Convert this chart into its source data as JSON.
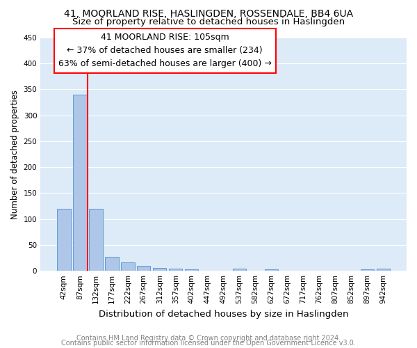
{
  "title1": "41, MOORLAND RISE, HASLINGDEN, ROSSENDALE, BB4 6UA",
  "title2": "Size of property relative to detached houses in Haslingden",
  "xlabel": "Distribution of detached houses by size in Haslingden",
  "ylabel": "Number of detached properties",
  "footnote1": "Contains HM Land Registry data © Crown copyright and database right 2024.",
  "footnote2": "Contains public sector information licensed under the Open Government Licence v3.0.",
  "categories": [
    "42sqm",
    "87sqm",
    "132sqm",
    "177sqm",
    "222sqm",
    "267sqm",
    "312sqm",
    "357sqm",
    "402sqm",
    "447sqm",
    "492sqm",
    "537sqm",
    "582sqm",
    "627sqm",
    "672sqm",
    "717sqm",
    "762sqm",
    "807sqm",
    "852sqm",
    "897sqm",
    "942sqm"
  ],
  "values": [
    120,
    340,
    120,
    27,
    17,
    9,
    6,
    4,
    3,
    0,
    0,
    4,
    0,
    3,
    0,
    0,
    0,
    0,
    0,
    3,
    4
  ],
  "bar_color": "#aec6e8",
  "bar_edgecolor": "#5b9bd5",
  "annotation_line1": "41 MOORLAND RISE: 105sqm",
  "annotation_line2": "← 37% of detached houses are smaller (234)",
  "annotation_line3": "63% of semi-detached houses are larger (400) →",
  "vline_x": 1.5,
  "vline_color": "red",
  "ylim": [
    0,
    450
  ],
  "yticks": [
    0,
    50,
    100,
    150,
    200,
    250,
    300,
    350,
    400,
    450
  ],
  "background_color": "#ddeaf7",
  "grid_color": "white",
  "title1_fontsize": 10,
  "title2_fontsize": 9.5,
  "xlabel_fontsize": 9.5,
  "ylabel_fontsize": 8.5,
  "tick_fontsize": 7.5,
  "annotation_fontsize": 9,
  "footnote_fontsize": 7
}
